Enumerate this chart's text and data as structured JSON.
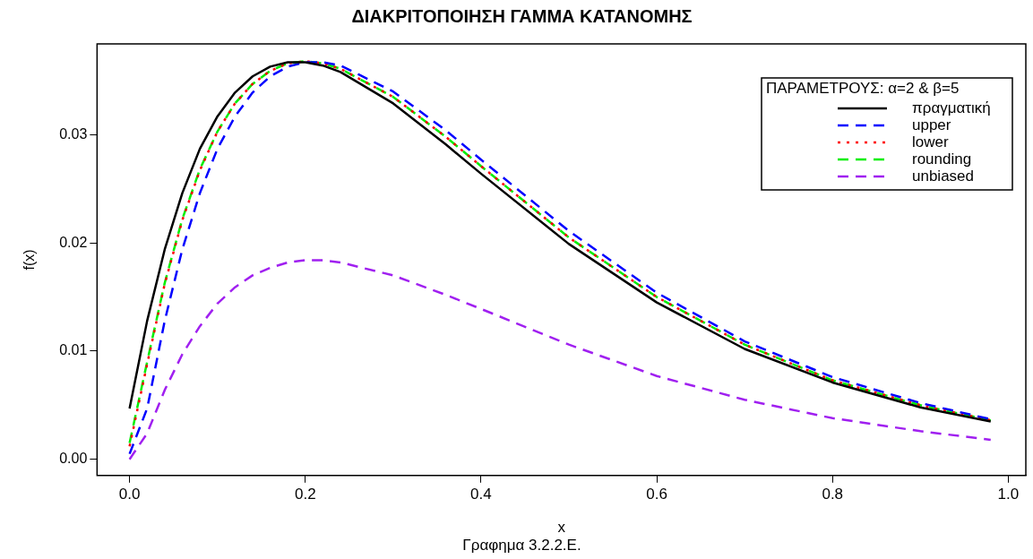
{
  "chart_data": {
    "type": "line",
    "title": "ΔΙΑΚΡΙΤΟΠΟΙΗΣΗ ΓΑΜΜΑ ΚΑΤΑΝΟΜΗΣ",
    "xlabel": "x",
    "ylabel": "f(x)",
    "legend_title": "ΠΑΡΑΜΕΤΡΟΥΣ: α=2 & β=5",
    "annotations": [
      "Γραφημα 3.2.2.Ε."
    ],
    "x": [
      0,
      0.02,
      0.04,
      0.06,
      0.08,
      0.1,
      0.12,
      0.14,
      0.16,
      0.18,
      0.2,
      0.22,
      0.24,
      0.3,
      0.36,
      0.4,
      0.5,
      0.6,
      0.7,
      0.8,
      0.9,
      0.98
    ],
    "series": [
      {
        "name": "πραγματική",
        "color": "#000000",
        "line_style": "solid",
        "values": [
          0.0047,
          0.0128,
          0.0194,
          0.0246,
          0.0287,
          0.0317,
          0.0339,
          0.0354,
          0.0363,
          0.0367,
          0.0367,
          0.0364,
          0.0358,
          0.0329,
          0.0291,
          0.0264,
          0.0199,
          0.0145,
          0.0102,
          0.0071,
          0.0048,
          0.0035
        ]
      },
      {
        "name": "upper",
        "color": "#0000ff",
        "line_style": "dashed",
        "values": [
          0.0005,
          0.0047,
          0.0128,
          0.0194,
          0.0246,
          0.0287,
          0.0317,
          0.0339,
          0.0354,
          0.0363,
          0.0367,
          0.0367,
          0.0364,
          0.034,
          0.0304,
          0.0277,
          0.0211,
          0.0154,
          0.0109,
          0.0076,
          0.0052,
          0.0037
        ]
      },
      {
        "name": "lower",
        "color": "#ff0000",
        "line_style": "dotted",
        "values": [
          0.0012,
          0.0088,
          0.0162,
          0.0221,
          0.0267,
          0.0303,
          0.0329,
          0.0347,
          0.0359,
          0.0366,
          0.0368,
          0.0366,
          0.0361,
          0.0335,
          0.0298,
          0.0271,
          0.0205,
          0.015,
          0.0106,
          0.0073,
          0.005,
          0.0036
        ]
      },
      {
        "name": "rounding",
        "color": "#00ee00",
        "line_style": "dashed",
        "values": [
          0.0015,
          0.009,
          0.0163,
          0.0222,
          0.0268,
          0.0303,
          0.0329,
          0.0347,
          0.0359,
          0.0366,
          0.0368,
          0.0366,
          0.0361,
          0.0335,
          0.0298,
          0.0271,
          0.0205,
          0.015,
          0.0106,
          0.0073,
          0.005,
          0.0036
        ]
      },
      {
        "name": "unbiased",
        "color": "#a020f0",
        "line_style": "dashed",
        "values": [
          0,
          0.0024,
          0.0064,
          0.0097,
          0.0123,
          0.0144,
          0.0159,
          0.017,
          0.0177,
          0.0182,
          0.0184,
          0.0184,
          0.0182,
          0.017,
          0.0152,
          0.0139,
          0.0106,
          0.0077,
          0.0055,
          0.0038,
          0.0026,
          0.0018
        ]
      }
    ],
    "xlim": [
      -0.037,
      1.02
    ],
    "ylim": [
      -0.0015,
      0.0384
    ],
    "xticks": [
      {
        "value": 0,
        "label": "0.0"
      },
      0.2,
      0.4,
      0.6,
      0.8,
      {
        "value": 1,
        "label": "1.0"
      }
    ],
    "yticks": [
      {
        "value": 0,
        "label": "0.00"
      },
      0.01,
      0.02,
      0.03
    ],
    "grid": false,
    "legend": "top right",
    "marker": "none"
  }
}
